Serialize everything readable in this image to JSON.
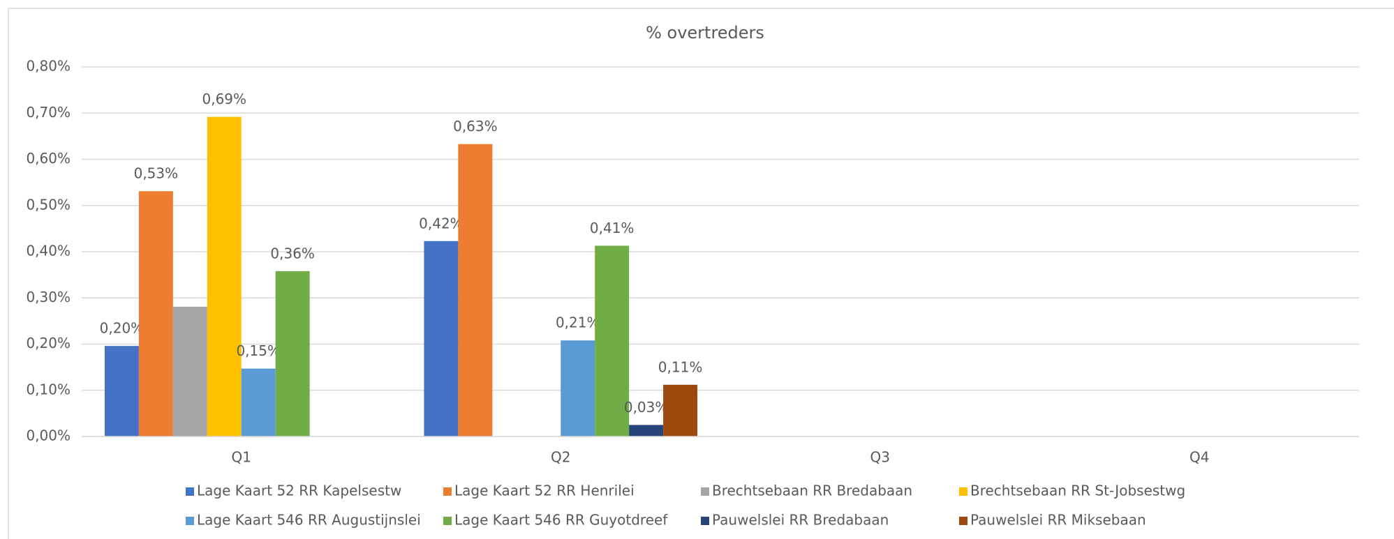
{
  "chart_data": {
    "type": "bar",
    "title": "% overtreders",
    "categories": [
      "Q1",
      "Q2",
      "Q3",
      "Q4"
    ],
    "series": [
      {
        "name": "Lage Kaart 52 RR Kapelsestw",
        "color": "#4472c4",
        "values": [
          0.196,
          0.423,
          null,
          null
        ],
        "value_labels": [
          "0,20%",
          "0,42%",
          null,
          null
        ]
      },
      {
        "name": "Lage Kaart 52 RR Henrilei",
        "color": "#ed7d31",
        "values": [
          0.531,
          0.633,
          null,
          null
        ],
        "value_labels": [
          "0,53%",
          "0,63%",
          null,
          null
        ]
      },
      {
        "name": "Brechtsebaan RR Bredabaan",
        "color": "#a5a5a5",
        "values": [
          0.281,
          null,
          null,
          null
        ],
        "value_labels": [
          null,
          null,
          null,
          null
        ]
      },
      {
        "name": "Brechtsebaan RR St-Jobsestwg",
        "color": "#ffc000",
        "values": [
          0.692,
          null,
          null,
          null
        ],
        "value_labels": [
          "0,69%",
          null,
          null,
          null
        ]
      },
      {
        "name": "Lage Kaart 546 RR Augustijnslei",
        "color": "#5b9bd5",
        "values": [
          0.147,
          0.208,
          null,
          null
        ],
        "value_labels": [
          "0,15%",
          "0,21%",
          null,
          null
        ]
      },
      {
        "name": "Lage Kaart 546 RR Guyotdreef",
        "color": "#70ad47",
        "values": [
          0.358,
          0.413,
          null,
          null
        ],
        "value_labels": [
          "0,36%",
          "0,41%",
          null,
          null
        ]
      },
      {
        "name": "Pauwelslei RR Bredabaan",
        "color": "#264478",
        "values": [
          null,
          0.025,
          null,
          null
        ],
        "value_labels": [
          null,
          "0,03%",
          null,
          null
        ]
      },
      {
        "name": "Pauwelslei RR Miksebaan",
        "color": "#9e480e",
        "values": [
          null,
          0.112,
          null,
          null
        ],
        "value_labels": [
          null,
          "0,11%",
          null,
          null
        ]
      }
    ],
    "ylim": [
      0,
      0.8
    ],
    "yticks": [
      {
        "value": 0,
        "label": "0,00%"
      },
      {
        "value": 0.1,
        "label": "0,10%"
      },
      {
        "value": 0.2,
        "label": "0,20%"
      },
      {
        "value": 0.3,
        "label": "0,30%"
      },
      {
        "value": 0.4,
        "label": "0,40%"
      },
      {
        "value": 0.5,
        "label": "0,50%"
      },
      {
        "value": 0.6,
        "label": "0,60%"
      },
      {
        "value": 0.7,
        "label": "0,70%"
      },
      {
        "value": 0.8,
        "label": "0,80%"
      }
    ],
    "grid": true,
    "legend": "bottom"
  }
}
